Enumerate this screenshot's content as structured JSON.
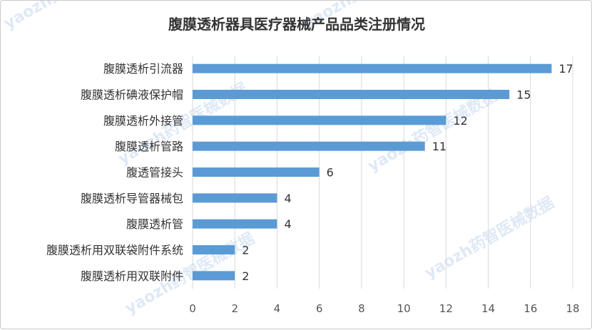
{
  "chart_data": {
    "type": "bar",
    "orientation": "horizontal",
    "title": "腹膜透析器具医疗器械产品品类注册情况",
    "categories": [
      "腹膜透析引流器",
      "腹膜透析碘液保护帽",
      "腹膜透析外接管",
      "腹膜透析管路",
      "腹透管接头",
      "腹膜透析导管器械包",
      "腹膜透析管",
      "腹膜透析用双联袋附件系统",
      "腹膜透析用双联附件"
    ],
    "values": [
      17,
      15,
      12,
      11,
      6,
      4,
      4,
      2,
      2
    ],
    "data_labels": [
      "17",
      "15",
      "12",
      "11",
      "6",
      "4",
      "4",
      "2",
      "2"
    ],
    "xlim": [
      0,
      18
    ],
    "xticks": [
      "0",
      "2",
      "4",
      "6",
      "8",
      "10",
      "12",
      "14",
      "16",
      "18"
    ],
    "grid": true,
    "bar_color": "#5b9bd5"
  },
  "watermark": "yaozh药智医械数据"
}
